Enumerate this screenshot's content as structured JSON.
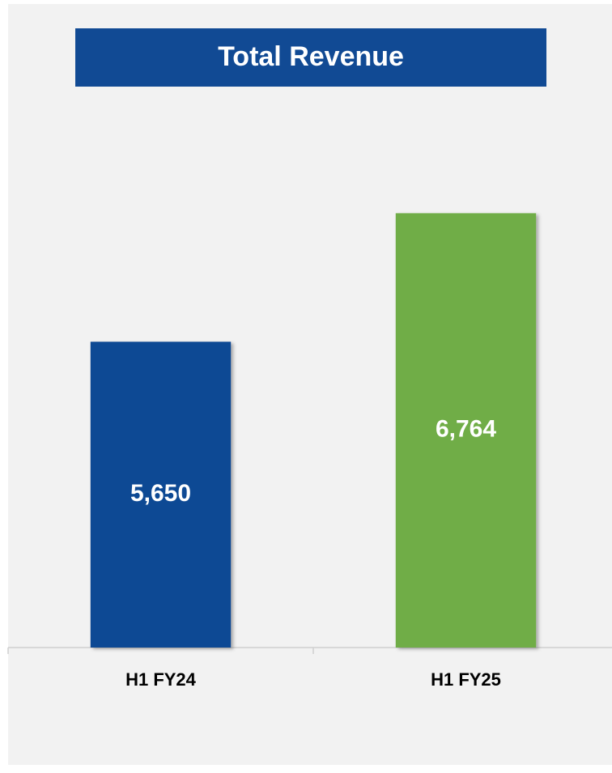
{
  "chart_data": {
    "type": "bar",
    "title": "Total Revenue",
    "categories": [
      "H1 FY24",
      "H1 FY25"
    ],
    "values": [
      5650,
      6764
    ],
    "value_labels": [
      "5,650",
      "6,764"
    ],
    "colors": [
      "#114a94",
      "#70ad47"
    ],
    "title_color": "#114a94",
    "ylim": [
      3000,
      7700
    ]
  }
}
